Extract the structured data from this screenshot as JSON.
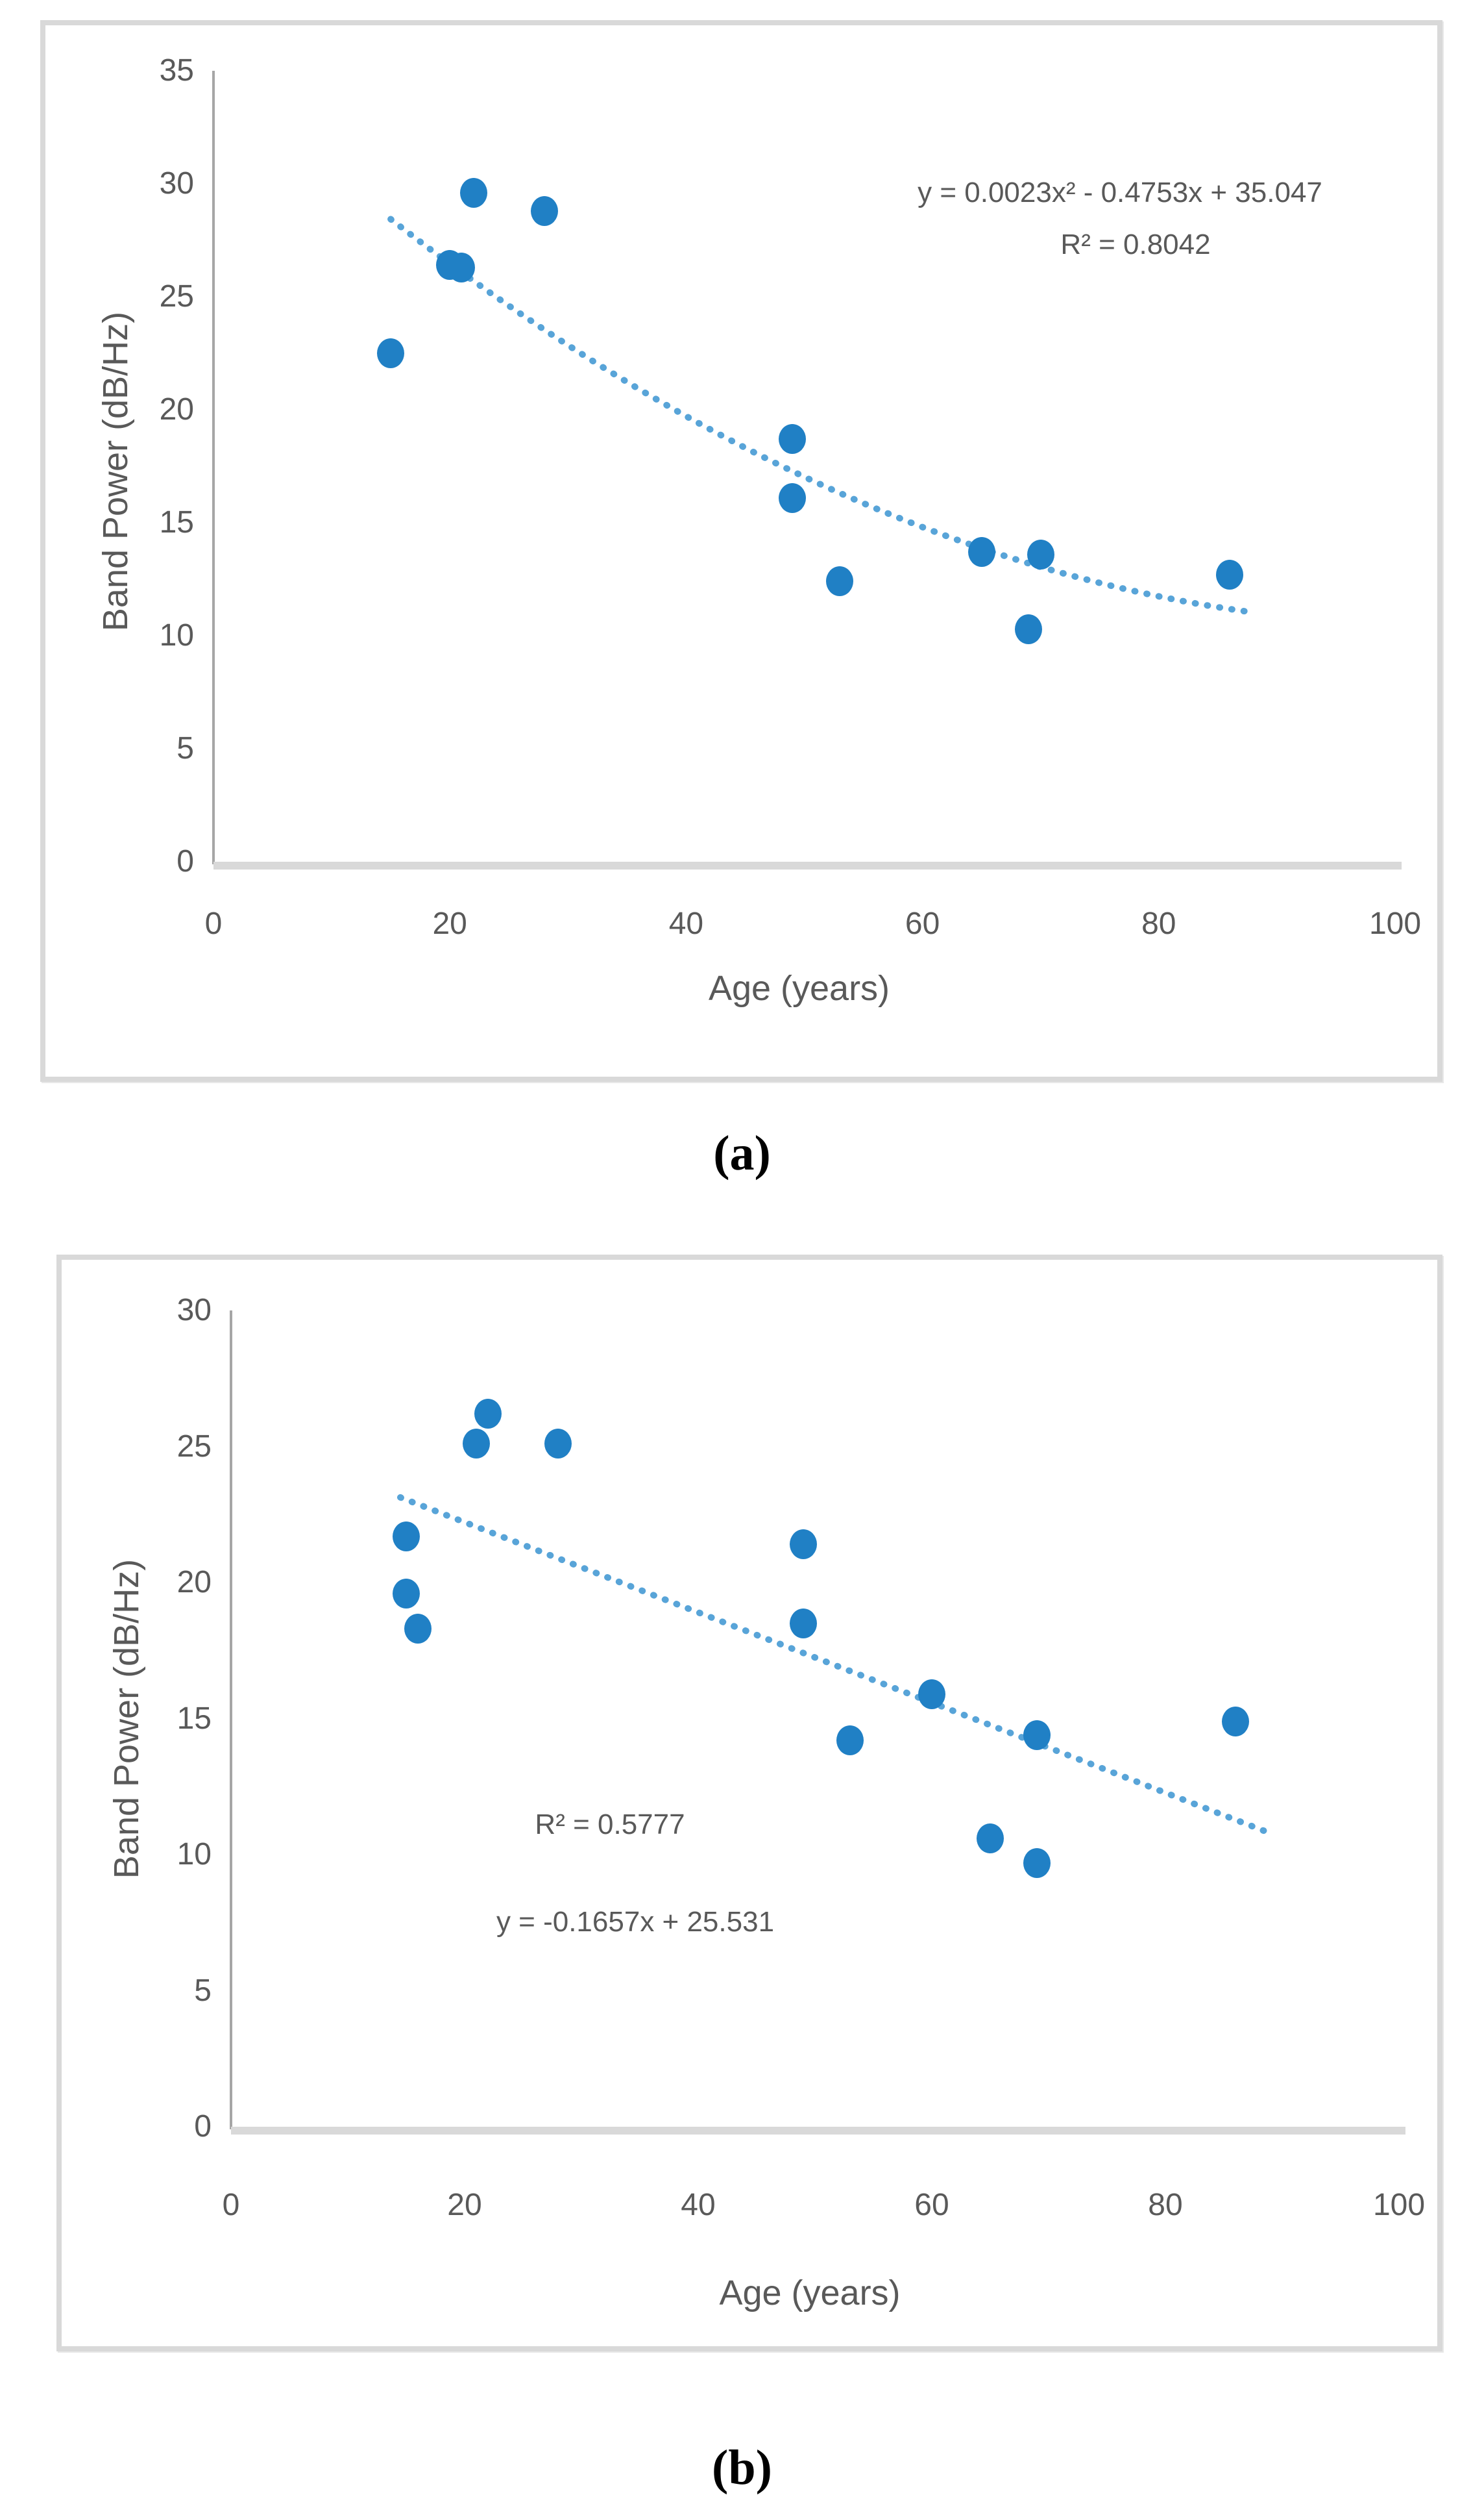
{
  "page": {
    "background": "#ffffff"
  },
  "figure": {
    "caption_a": "(a)",
    "caption_b": "(b)"
  },
  "colors": {
    "marker": "#2080c5",
    "trendline": "#58a4d8",
    "axis_text": "#595959",
    "axis_line": "#a6a6a6",
    "baseline": "#d9d9d9",
    "box_border": "#d9d9d9"
  },
  "chart_data": [
    {
      "id": "a",
      "type": "scatter",
      "xlabel": "Age (years)",
      "ylabel": "Band Power (dB/Hz)",
      "xlim": [
        0,
        100
      ],
      "ylim": [
        0,
        35
      ],
      "xticks": [
        0,
        20,
        40,
        60,
        80,
        100
      ],
      "yticks": [
        0,
        5,
        10,
        15,
        20,
        25,
        30,
        35
      ],
      "grid": false,
      "legend": "none",
      "points": [
        {
          "x": 15,
          "y": 22.5
        },
        {
          "x": 20,
          "y": 26.4
        },
        {
          "x": 21,
          "y": 26.3
        },
        {
          "x": 22,
          "y": 29.6
        },
        {
          "x": 28,
          "y": 28.8
        },
        {
          "x": 49,
          "y": 18.7
        },
        {
          "x": 49,
          "y": 16.1
        },
        {
          "x": 53,
          "y": 12.4
        },
        {
          "x": 65,
          "y": 13.7
        },
        {
          "x": 69,
          "y": 10.3
        },
        {
          "x": 70,
          "y": 13.6
        },
        {
          "x": 86,
          "y": 12.7
        }
      ],
      "trendline": {
        "kind": "quadratic",
        "a": 0.0023,
        "b": -0.4753,
        "c": 35.047,
        "x_start": 15,
        "x_end": 88,
        "style": "dotted"
      },
      "annotations": {
        "equation": "y = 0.0023x² - 0.4753x + 35.047",
        "r_squared": "R² = 0.8042"
      }
    },
    {
      "id": "b",
      "type": "scatter",
      "xlabel": "Age (years)",
      "ylabel": "Band Power (dB/Hz)",
      "xlim": [
        0,
        100
      ],
      "ylim": [
        0,
        30
      ],
      "xticks": [
        0,
        20,
        40,
        60,
        80,
        100
      ],
      "yticks": [
        0,
        5,
        10,
        15,
        20,
        25,
        30
      ],
      "grid": false,
      "legend": "none",
      "points": [
        {
          "x": 15,
          "y": 21.7
        },
        {
          "x": 15,
          "y": 19.6
        },
        {
          "x": 16,
          "y": 18.3
        },
        {
          "x": 21,
          "y": 25.1
        },
        {
          "x": 22,
          "y": 26.2
        },
        {
          "x": 28,
          "y": 25.1
        },
        {
          "x": 49,
          "y": 21.4
        },
        {
          "x": 49,
          "y": 18.5
        },
        {
          "x": 53,
          "y": 14.2
        },
        {
          "x": 60,
          "y": 15.9
        },
        {
          "x": 65,
          "y": 10.6
        },
        {
          "x": 69,
          "y": 14.4
        },
        {
          "x": 69,
          "y": 9.7
        },
        {
          "x": 86,
          "y": 14.9
        }
      ],
      "trendline": {
        "kind": "linear",
        "slope": -0.1657,
        "intercept": 25.531,
        "x_start": 14.5,
        "x_end": 88.5,
        "style": "dotted"
      },
      "annotations": {
        "r_squared": "R² = 0.5777",
        "equation": "y = -0.1657x + 25.531"
      }
    }
  ]
}
